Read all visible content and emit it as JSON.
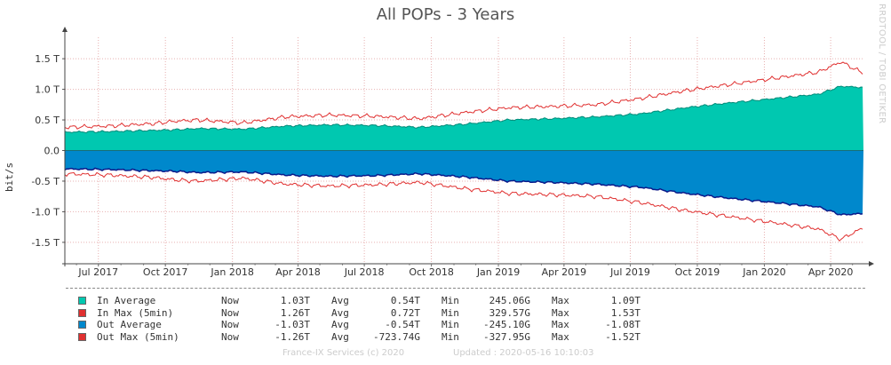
{
  "chart_data": {
    "type": "area",
    "title": "All POPs - 3 Years",
    "side_label": "RRDTOOL / TOBI OETIKER",
    "ylabel": "bit/s",
    "y_ticks": [
      {
        "value": 1.5,
        "label": "1.5 T"
      },
      {
        "value": 1.0,
        "label": "1.0 T"
      },
      {
        "value": 0.5,
        "label": "0.5 T"
      },
      {
        "value": 0.0,
        "label": "0.0"
      },
      {
        "value": -0.5,
        "label": "-0.5 T"
      },
      {
        "value": -1.0,
        "label": "-1.0 T"
      },
      {
        "value": -1.5,
        "label": "-1.5 T"
      }
    ],
    "ylim": [
      -1.85,
      1.85
    ],
    "x_ticks": [
      "Jul 2017",
      "Oct 2017",
      "Jan 2018",
      "Apr 2018",
      "Jul 2018",
      "Oct 2018",
      "Jan 2019",
      "Apr 2019",
      "Jul 2019",
      "Oct 2019",
      "Jan 2020",
      "Apr 2020"
    ],
    "x_range": [
      "2017-05-16",
      "2020-05-16"
    ],
    "grid": true,
    "x": [
      "2017-05",
      "2017-07",
      "2017-09",
      "2017-10",
      "2017-11",
      "2018-01",
      "2018-03",
      "2018-05",
      "2018-07",
      "2018-09",
      "2018-11",
      "2019-01",
      "2019-03",
      "2019-05",
      "2019-07",
      "2019-09",
      "2019-11",
      "2020-01",
      "2020-03",
      "2020-04",
      "2020-05"
    ],
    "series": [
      {
        "name": "In Average",
        "values": [
          0.3,
          0.31,
          0.33,
          0.34,
          0.36,
          0.35,
          0.4,
          0.42,
          0.41,
          0.38,
          0.43,
          0.5,
          0.52,
          0.55,
          0.6,
          0.7,
          0.78,
          0.85,
          0.92,
          1.05,
          1.03
        ]
      },
      {
        "name": "In Max (5min)",
        "values": [
          0.38,
          0.4,
          0.44,
          0.48,
          0.5,
          0.45,
          0.55,
          0.58,
          0.56,
          0.52,
          0.62,
          0.7,
          0.72,
          0.75,
          0.85,
          0.98,
          1.08,
          1.18,
          1.28,
          1.45,
          1.26
        ]
      },
      {
        "name": "Out Average",
        "values": [
          -0.3,
          -0.31,
          -0.33,
          -0.34,
          -0.36,
          -0.35,
          -0.4,
          -0.42,
          -0.41,
          -0.38,
          -0.43,
          -0.5,
          -0.52,
          -0.55,
          -0.6,
          -0.7,
          -0.78,
          -0.85,
          -0.92,
          -1.05,
          -1.03
        ]
      },
      {
        "name": "Out Max (5min)",
        "values": [
          -0.38,
          -0.4,
          -0.44,
          -0.48,
          -0.5,
          -0.45,
          -0.55,
          -0.58,
          -0.56,
          -0.52,
          -0.62,
          -0.7,
          -0.72,
          -0.75,
          -0.85,
          -0.98,
          -1.08,
          -1.18,
          -1.28,
          -1.45,
          -1.26
        ]
      }
    ],
    "colors": {
      "in_avg": "#00c8b0",
      "in_max": "#e03030",
      "out_avg": "#0088cc",
      "out_avg_edge": "#0a1a8a",
      "out_max": "#e03030"
    }
  },
  "legend": [
    {
      "name": "In Average",
      "color": "#00c8b0",
      "now_label": "Now",
      "now": "1.03T",
      "avg_label": "Avg",
      "avg": "0.54T",
      "min_label": "Min",
      "min": "245.06G",
      "max_label": "Max",
      "max": "1.09T"
    },
    {
      "name": "In Max (5min)",
      "color": "#e03030",
      "now_label": "Now",
      "now": "1.26T",
      "avg_label": "Avg",
      "avg": "0.72T",
      "min_label": "Min",
      "min": "329.57G",
      "max_label": "Max",
      "max": "1.53T"
    },
    {
      "name": "Out Average",
      "color": "#0088cc",
      "now_label": "Now",
      "now": "-1.03T",
      "avg_label": "Avg",
      "avg": "-0.54T",
      "min_label": "Min",
      "min": "-245.10G",
      "max_label": "Max",
      "max": "-1.08T"
    },
    {
      "name": "Out Max (5min)",
      "color": "#e03030",
      "now_label": "Now",
      "now": "-1.26T",
      "avg_label": "Avg",
      "avg": "-723.74G",
      "min_label": "Min",
      "min": "-327.95G",
      "max_label": "Max",
      "max": "-1.52T"
    }
  ],
  "footer": {
    "copyright": "France-IX Services (c) 2020",
    "updated": "Updated : 2020-05-16 10:10:03"
  }
}
